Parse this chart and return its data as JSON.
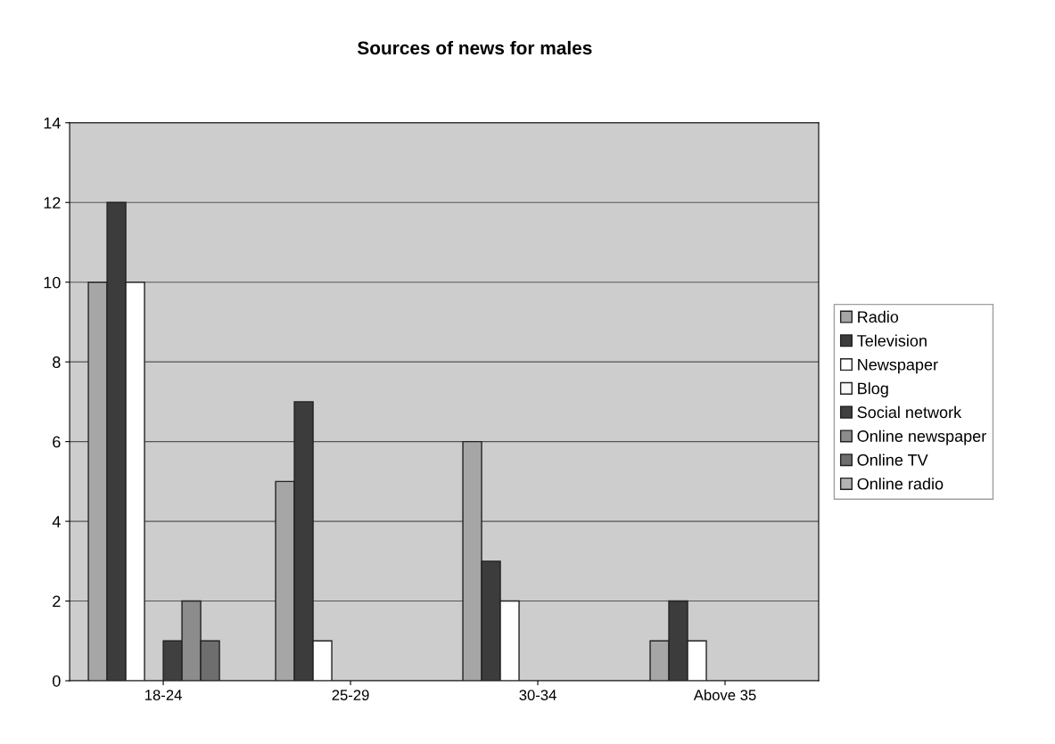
{
  "chart_data": {
    "type": "bar",
    "title": "Sources of news for males",
    "categories": [
      "18-24",
      "25-29",
      "30-34",
      "Above 35"
    ],
    "series": [
      {
        "name": "Radio",
        "color": "#a6a6a6",
        "values": [
          10,
          5,
          6,
          1
        ]
      },
      {
        "name": "Television",
        "color": "#3c3c3c",
        "values": [
          12,
          7,
          3,
          2
        ]
      },
      {
        "name": "Newspaper",
        "color": "#ffffff",
        "values": [
          10,
          1,
          2,
          1
        ]
      },
      {
        "name": "Blog",
        "color": "#f8f8f8",
        "values": [
          0,
          0,
          0,
          0
        ]
      },
      {
        "name": "Social network",
        "color": "#404040",
        "values": [
          1,
          0,
          0,
          0
        ]
      },
      {
        "name": "Online newspaper",
        "color": "#8c8c8c",
        "values": [
          2,
          0,
          0,
          0
        ]
      },
      {
        "name": "Online TV",
        "color": "#6e6e6e",
        "values": [
          1,
          0,
          0,
          0
        ]
      },
      {
        "name": "Online radio",
        "color": "#b4b4b4",
        "values": [
          0,
          0,
          0,
          0
        ]
      }
    ],
    "ylim": [
      0,
      14
    ],
    "yticks": [
      0,
      2,
      4,
      6,
      8,
      10,
      12,
      14
    ],
    "grid": "y",
    "legend": "right"
  }
}
